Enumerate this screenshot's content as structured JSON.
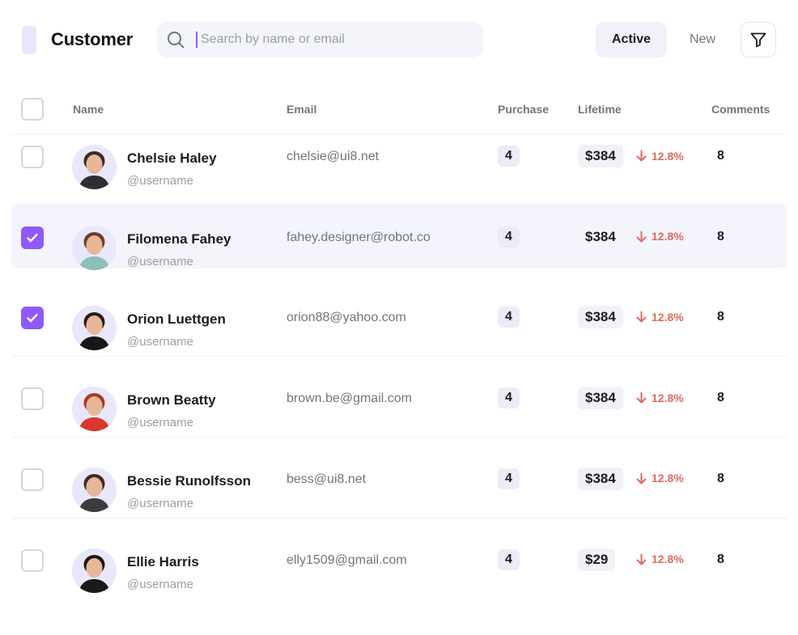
{
  "header": {
    "title": "Customer",
    "search_placeholder": "Search by name or email",
    "search_value": "",
    "tabs": [
      {
        "label": "Active",
        "selected": true
      },
      {
        "label": "New",
        "selected": false
      }
    ]
  },
  "table": {
    "columns": [
      "Name",
      "Email",
      "Purchase",
      "Lifetime",
      "Comments"
    ],
    "rows": [
      {
        "name": "Chelsie Haley",
        "username": "@username",
        "email": "chelsie@ui8.net",
        "purchase": "4",
        "lifetime": "$384",
        "change": "12.8%",
        "comments": "8",
        "checked": false
      },
      {
        "name": "Filomena Fahey",
        "username": "@username",
        "email": "fahey.designer@robot.co",
        "purchase": "4",
        "lifetime": "$384",
        "change": "12.8%",
        "comments": "8",
        "checked": true
      },
      {
        "name": "Orion Luettgen",
        "username": "@username",
        "email": "orion88@yahoo.com",
        "purchase": "4",
        "lifetime": "$384",
        "change": "12.8%",
        "comments": "8",
        "checked": true
      },
      {
        "name": "Brown Beatty",
        "username": "@username",
        "email": "brown.be@gmail.com",
        "purchase": "4",
        "lifetime": "$384",
        "change": "12.8%",
        "comments": "8",
        "checked": false
      },
      {
        "name": "Bessie Runolfsson",
        "username": "@username",
        "email": "bess@ui8.net",
        "purchase": "4",
        "lifetime": "$384",
        "change": "12.8%",
        "comments": "8",
        "checked": false
      },
      {
        "name": "Ellie Harris",
        "username": "@username",
        "email": "elly1509@gmail.com",
        "purchase": "4",
        "lifetime": "$29",
        "change": "12.8%",
        "comments": "8",
        "checked": false
      }
    ]
  },
  "colors": {
    "accent": "#8e59ff",
    "negative": "#e06a5d",
    "row_selected_bg": "#f4f4fc"
  },
  "icons": {
    "search": "search-icon",
    "filter": "filter-icon",
    "change_direction": "arrow-down-icon",
    "check": "check-icon"
  }
}
